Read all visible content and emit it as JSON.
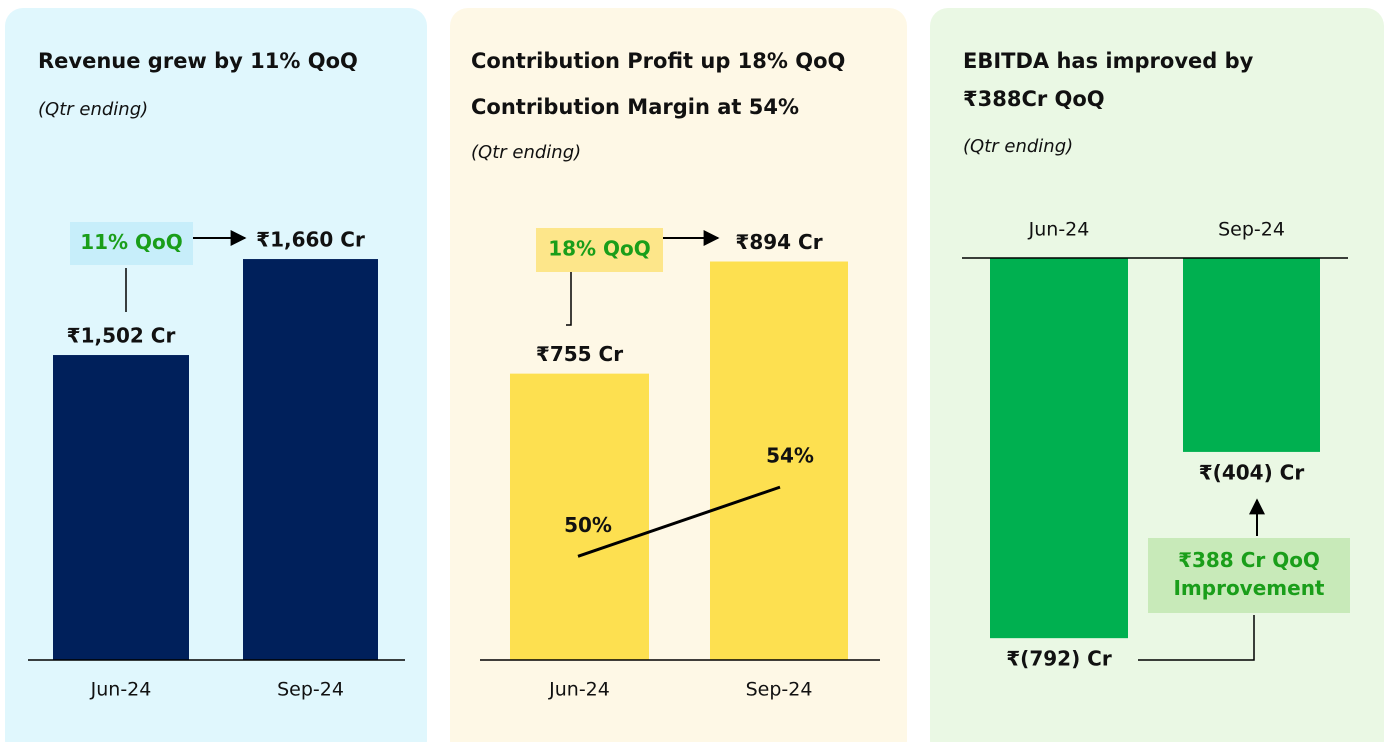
{
  "chart_data": [
    {
      "type": "bar",
      "title": [
        "Revenue grew by 11% QoQ"
      ],
      "note": "(Qtr ending)",
      "categories": [
        "Jun-24",
        "Sep-24"
      ],
      "values": [
        1502,
        1660
      ],
      "value_labels": [
        "₹1,502 Cr",
        "₹1,660 Cr"
      ],
      "color": "#00205b",
      "ylim": [
        1000,
        1800
      ],
      "annotation": [
        "11% QoQ"
      ]
    },
    {
      "type": "bar",
      "title": [
        "Contribution Profit up 18% QoQ",
        "Contribution Margin at 54%"
      ],
      "note": "(Qtr ending)",
      "categories": [
        "Jun-24",
        "Sep-24"
      ],
      "values": [
        755,
        894
      ],
      "value_labels": [
        "₹755 Cr",
        "₹894 Cr"
      ],
      "color": "#fde050",
      "ylim": [
        400,
        1000
      ],
      "annotation": [
        "18% QoQ"
      ],
      "line": {
        "values": [
          50,
          54
        ],
        "value_labels": [
          "50%",
          "54%"
        ],
        "axis": "y2",
        "color": "#000000"
      },
      "y2lim": [
        44,
        72
      ]
    },
    {
      "type": "bar",
      "title": [
        "EBITDA has improved by",
        "₹388Cr QoQ"
      ],
      "note": "(Qtr ending)",
      "categories": [
        "Jun-24",
        "Sep-24"
      ],
      "values": [
        -792,
        -404
      ],
      "value_labels": [
        "₹(792) Cr",
        "₹(404) Cr"
      ],
      "color": "#00b050",
      "ylim": [
        -900,
        0
      ],
      "annotation": [
        "₹388 Cr QoQ",
        "Improvement"
      ]
    }
  ]
}
